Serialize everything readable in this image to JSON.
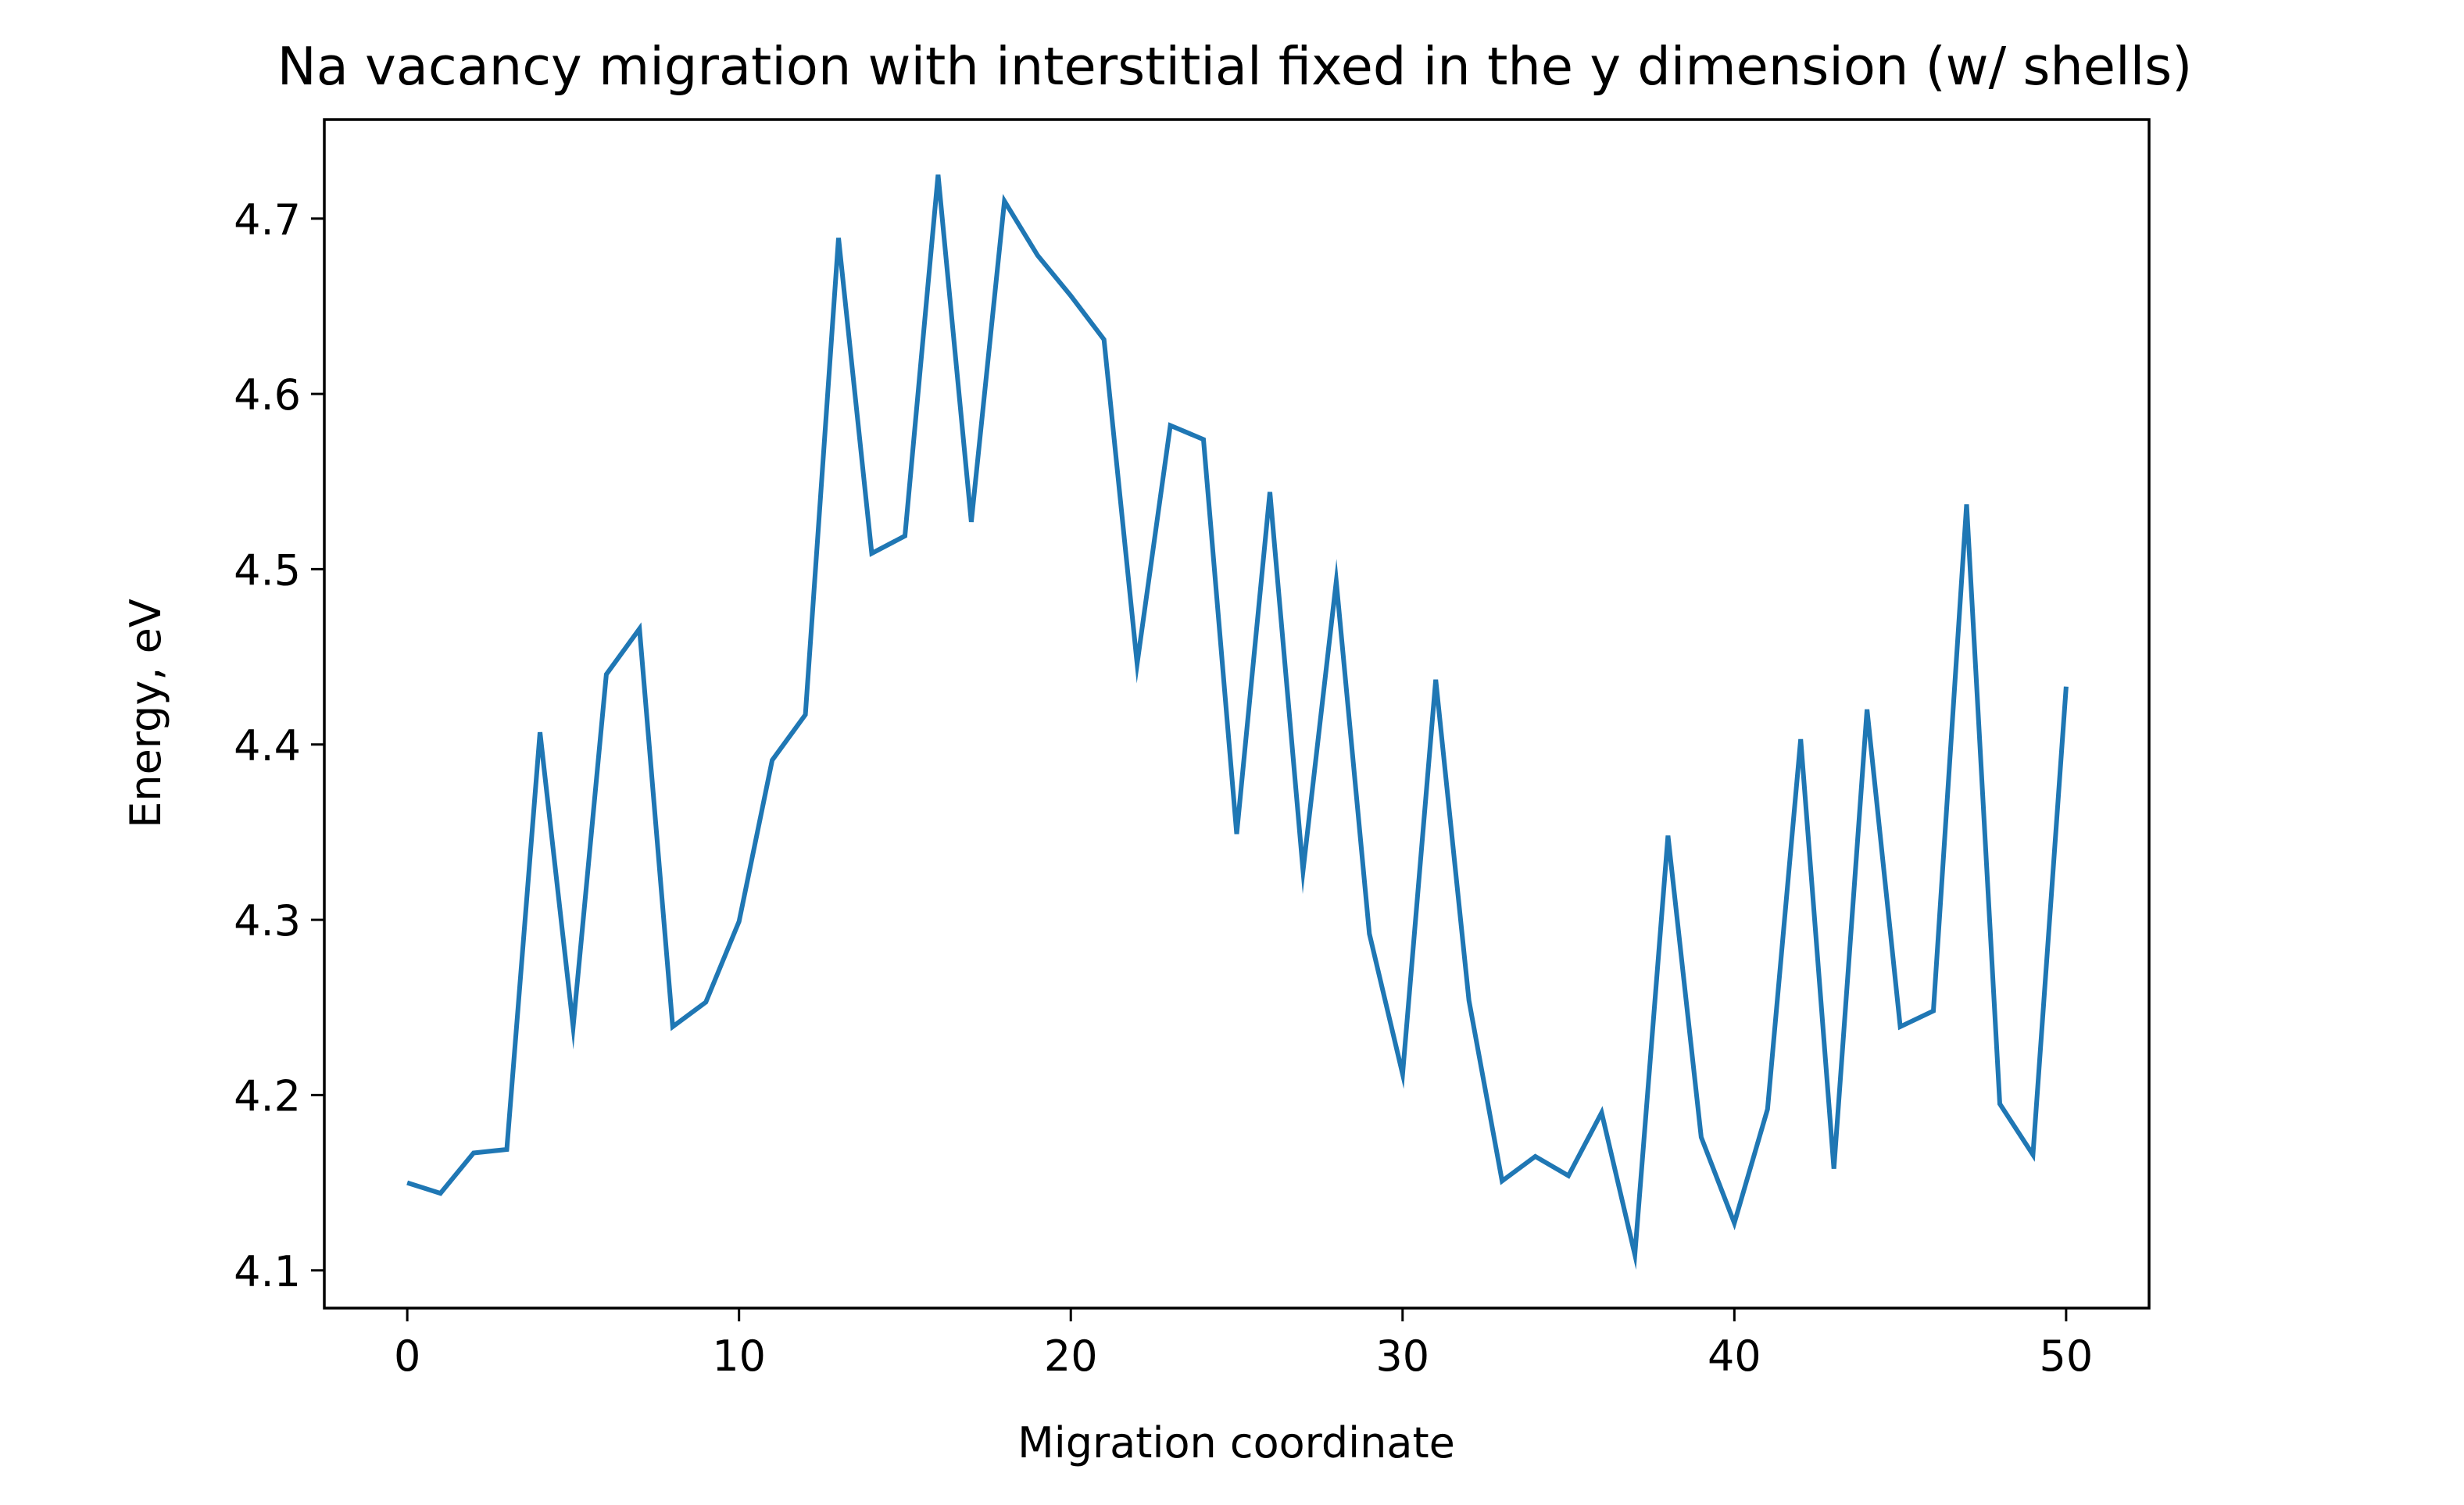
{
  "chart_data": {
    "type": "line",
    "title": "Na vacancy migration with interstitial fixed in the y dimension (w/ shells)",
    "xlabel": "Migration coordinate",
    "ylabel": "Energy, eV",
    "xlim": [
      -2.5,
      52.5
    ],
    "ylim": [
      4.0785,
      4.7565
    ],
    "xticks": [
      0,
      10,
      20,
      30,
      40,
      50
    ],
    "xtick_labels": [
      "0",
      "10",
      "20",
      "30",
      "40",
      "50"
    ],
    "yticks": [
      4.1,
      4.2,
      4.3,
      4.4,
      4.5,
      4.6,
      4.7
    ],
    "ytick_labels": [
      "4.1",
      "4.2",
      "4.3",
      "4.4",
      "4.5",
      "4.6",
      "4.7"
    ],
    "grid": false,
    "series": [
      {
        "color": "#1f77b4",
        "x": [
          0,
          1,
          2,
          3,
          4,
          5,
          6,
          7,
          8,
          9,
          10,
          11,
          12,
          13,
          14,
          15,
          16,
          17,
          18,
          19,
          20,
          21,
          22,
          23,
          24,
          25,
          26,
          27,
          28,
          29,
          30,
          31,
          32,
          33,
          34,
          35,
          36,
          37,
          38,
          39,
          40,
          41,
          42,
          43,
          44,
          45,
          46,
          47,
          48,
          49,
          50
        ],
        "y": [
          4.15,
          4.144,
          4.167,
          4.169,
          4.407,
          4.239,
          4.44,
          4.466,
          4.239,
          4.253,
          4.299,
          4.391,
          4.417,
          4.689,
          4.509,
          4.519,
          4.725,
          4.527,
          4.71,
          4.679,
          4.656,
          4.631,
          4.446,
          4.582,
          4.574,
          4.349,
          4.544,
          4.328,
          4.493,
          4.292,
          4.212,
          4.437,
          4.254,
          4.151,
          4.165,
          4.154,
          4.19,
          4.109,
          4.348,
          4.176,
          4.127,
          4.192,
          4.403,
          4.158,
          4.42,
          4.239,
          4.248,
          4.537,
          4.195,
          4.166,
          4.433
        ]
      }
    ]
  }
}
